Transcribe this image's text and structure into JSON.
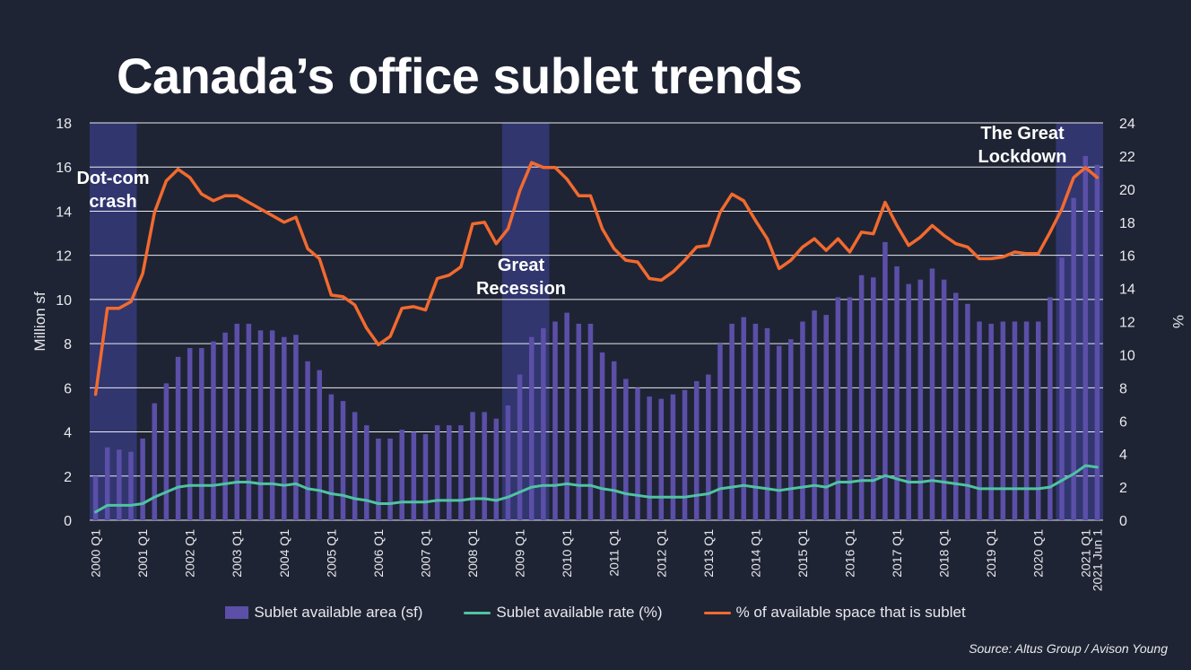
{
  "chart_data": {
    "type": "bar",
    "title": "Canada’s office sublet trends",
    "source": "Source: Altus Group / Avison Young",
    "y_left": {
      "label": "Million sf",
      "range": [
        0,
        18
      ],
      "ticks": [
        0,
        2,
        4,
        6,
        8,
        10,
        12,
        14,
        16,
        18
      ]
    },
    "y_right": {
      "label": "%",
      "range": [
        0,
        24
      ],
      "ticks": [
        0,
        2,
        4,
        6,
        8,
        10,
        12,
        14,
        16,
        18,
        20,
        22,
        24
      ]
    },
    "grid": true,
    "legend_position": "bottom",
    "x_tick_labels": [
      {
        "index": 0,
        "label": "2000 Q1"
      },
      {
        "index": 4,
        "label": "2001 Q1"
      },
      {
        "index": 8,
        "label": "2002 Q1"
      },
      {
        "index": 12,
        "label": "2003 Q1"
      },
      {
        "index": 16,
        "label": "2004 Q1"
      },
      {
        "index": 20,
        "label": "2005 Q1"
      },
      {
        "index": 24,
        "label": "2006 Q1"
      },
      {
        "index": 28,
        "label": "2007 Q1"
      },
      {
        "index": 32,
        "label": "2008 Q1"
      },
      {
        "index": 36,
        "label": "2009 Q1"
      },
      {
        "index": 40,
        "label": "2010 Q1"
      },
      {
        "index": 44,
        "label": "2011 Q1"
      },
      {
        "index": 48,
        "label": "2012 Q1"
      },
      {
        "index": 52,
        "label": "2013 Q1"
      },
      {
        "index": 56,
        "label": "2014 Q1"
      },
      {
        "index": 60,
        "label": "2015 Q1"
      },
      {
        "index": 64,
        "label": "2016 Q1"
      },
      {
        "index": 68,
        "label": "2017 Q1"
      },
      {
        "index": 72,
        "label": "2018 Q1"
      },
      {
        "index": 76,
        "label": "2019 Q1"
      },
      {
        "index": 80,
        "label": "2020 Q1"
      },
      {
        "index": 84,
        "label": "2021 Q1"
      },
      {
        "index": 85,
        "label": "2021 Jun 1"
      }
    ],
    "shaded_periods": [
      {
        "label": "Dot-com\ncrash",
        "start_index": 0,
        "end_index": 3
      },
      {
        "label": "Great\nRecession",
        "start_index": 35,
        "end_index": 38
      },
      {
        "label": "The Great\nLockdown",
        "start_index": 82,
        "end_index": 85
      }
    ],
    "series": [
      {
        "name": "Sublet available area (sf)",
        "type": "bar",
        "axis": "left",
        "color": "#5b4fa8",
        "values": [
          2.0,
          3.3,
          3.2,
          3.1,
          3.7,
          5.3,
          6.2,
          7.4,
          7.8,
          7.8,
          8.1,
          8.5,
          8.9,
          8.9,
          8.6,
          8.6,
          8.3,
          8.4,
          7.2,
          6.8,
          5.7,
          5.4,
          4.9,
          4.3,
          3.7,
          3.7,
          4.1,
          4.0,
          3.9,
          4.3,
          4.3,
          4.3,
          4.9,
          4.9,
          4.6,
          5.2,
          6.6,
          8.3,
          8.7,
          9.0,
          9.4,
          8.9,
          8.9,
          7.6,
          7.2,
          6.4,
          6.0,
          5.6,
          5.5,
          5.7,
          5.9,
          6.3,
          6.6,
          8.0,
          8.9,
          9.2,
          8.9,
          8.7,
          7.9,
          8.2,
          9.0,
          9.5,
          9.3,
          10.1,
          10.1,
          11.1,
          11.0,
          12.6,
          11.5,
          10.7,
          10.9,
          11.4,
          10.9,
          10.3,
          9.8,
          9.0,
          8.9,
          9.0,
          9.0,
          9.0,
          9.0,
          10.1,
          11.9,
          14.6,
          16.5,
          16.1
        ]
      },
      {
        "name": "Sublet available rate (%)",
        "type": "line",
        "axis": "right",
        "color": "#4fc3a1",
        "values": [
          0.5,
          0.9,
          0.9,
          0.9,
          1.0,
          1.4,
          1.7,
          2.0,
          2.1,
          2.1,
          2.1,
          2.2,
          2.3,
          2.3,
          2.2,
          2.2,
          2.1,
          2.2,
          1.9,
          1.8,
          1.6,
          1.5,
          1.3,
          1.2,
          1.0,
          1.0,
          1.1,
          1.1,
          1.1,
          1.2,
          1.2,
          1.2,
          1.3,
          1.3,
          1.2,
          1.4,
          1.7,
          2.0,
          2.1,
          2.1,
          2.2,
          2.1,
          2.1,
          1.9,
          1.8,
          1.6,
          1.5,
          1.4,
          1.4,
          1.4,
          1.4,
          1.5,
          1.6,
          1.9,
          2.0,
          2.1,
          2.0,
          1.9,
          1.8,
          1.9,
          2.0,
          2.1,
          2.0,
          2.3,
          2.3,
          2.4,
          2.4,
          2.7,
          2.5,
          2.3,
          2.3,
          2.4,
          2.3,
          2.2,
          2.1,
          1.9,
          1.9,
          1.9,
          1.9,
          1.9,
          1.9,
          2.0,
          2.4,
          2.8,
          3.3,
          3.2
        ]
      },
      {
        "name": "% of available space that is sublet",
        "type": "line",
        "axis": "right",
        "color": "#f26a2e",
        "values": [
          7.6,
          12.8,
          12.8,
          13.2,
          14.9,
          18.6,
          20.5,
          21.2,
          20.7,
          19.7,
          19.3,
          19.6,
          19.6,
          19.2,
          18.8,
          18.4,
          18.0,
          18.3,
          16.4,
          15.8,
          13.6,
          13.5,
          13.0,
          11.6,
          10.6,
          11.1,
          12.8,
          12.9,
          12.7,
          14.6,
          14.8,
          15.3,
          17.9,
          18.0,
          16.7,
          17.6,
          19.9,
          21.6,
          21.3,
          21.3,
          20.6,
          19.6,
          19.6,
          17.6,
          16.4,
          15.7,
          15.6,
          14.6,
          14.5,
          15.0,
          15.7,
          16.5,
          16.6,
          18.6,
          19.7,
          19.3,
          18.1,
          17.0,
          15.2,
          15.7,
          16.5,
          17.0,
          16.3,
          17.0,
          16.2,
          17.4,
          17.3,
          19.2,
          17.8,
          16.6,
          17.1,
          17.8,
          17.2,
          16.7,
          16.5,
          15.8,
          15.8,
          15.9,
          16.2,
          16.1,
          16.1,
          17.4,
          18.8,
          20.7,
          21.3,
          20.7
        ]
      }
    ]
  }
}
